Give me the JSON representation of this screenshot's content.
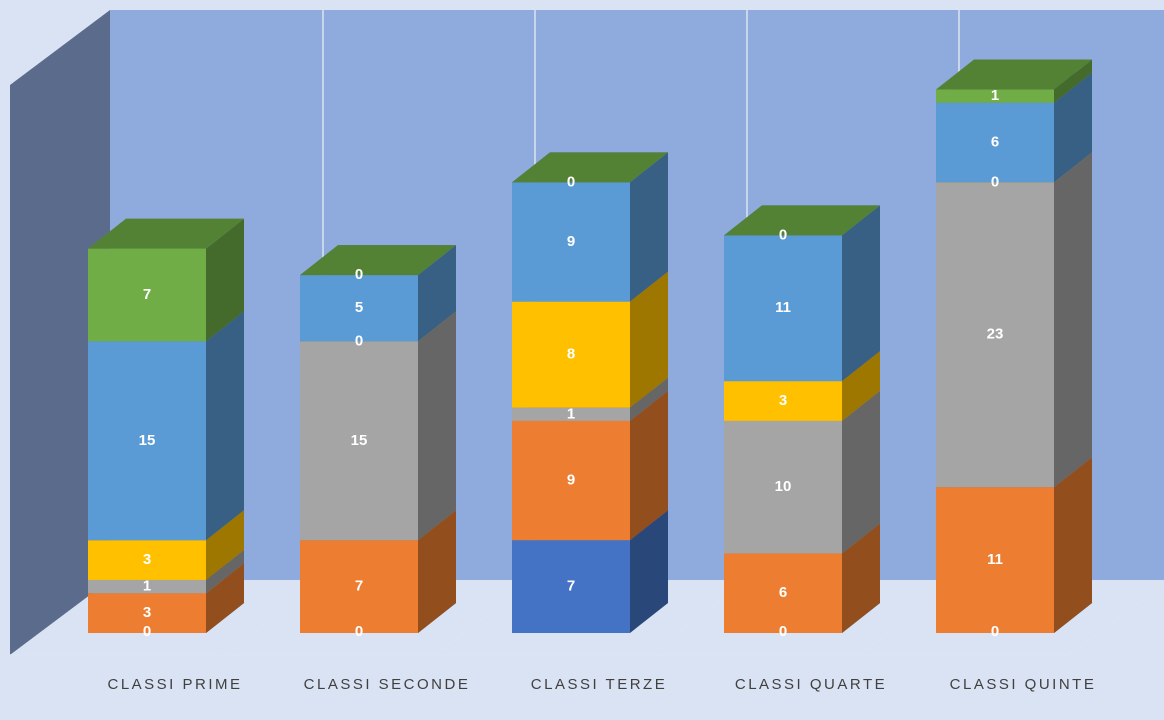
{
  "chart_data": {
    "type": "bar3d_stacked",
    "categories": [
      "CLASSI PRIME",
      "CLASSI SECONDE",
      "CLASSI TERZE",
      "CLASSI QUARTE",
      "CLASSI QUINTE"
    ],
    "series": [
      {
        "color": "#4472c4",
        "values": [
          0,
          0,
          7,
          0,
          0
        ]
      },
      {
        "color": "#ed7d31",
        "values": [
          3,
          7,
          9,
          6,
          11
        ]
      },
      {
        "color": "#a5a5a5",
        "values": [
          1,
          15,
          1,
          10,
          23
        ]
      },
      {
        "color": "#ffc000",
        "values": [
          3,
          0,
          8,
          3,
          0
        ]
      },
      {
        "color": "#5b9bd5",
        "values": [
          15,
          5,
          9,
          11,
          6
        ]
      },
      {
        "color": "#70ad47",
        "values": [
          7,
          0,
          0,
          0,
          1
        ]
      }
    ],
    "ylim": [
      0,
      47
    ]
  }
}
